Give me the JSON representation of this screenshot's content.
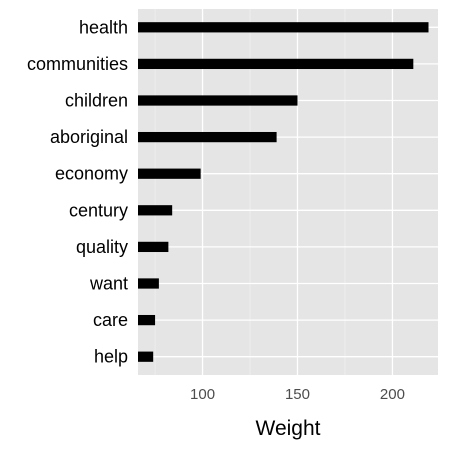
{
  "chart_data": {
    "type": "bar",
    "orientation": "horizontal",
    "categories": [
      "health",
      "communities",
      "children",
      "aboriginal",
      "economy",
      "century",
      "quality",
      "want",
      "care",
      "help"
    ],
    "values": [
      219,
      211,
      150,
      139,
      99,
      84,
      82,
      77,
      75,
      74
    ],
    "title": "",
    "xlabel": "Weight",
    "ylabel": "",
    "xlim": [
      66,
      224
    ],
    "xticks": [
      100,
      150,
      200
    ],
    "grid": true,
    "legend": "none",
    "colors": {
      "bar": "#000000",
      "panel": "#e5e5e5",
      "grid_major": "#ffffff",
      "grid_minor": "#f2f2f2",
      "axis_text": "#4d4d4d",
      "label_text": "#000000"
    }
  }
}
